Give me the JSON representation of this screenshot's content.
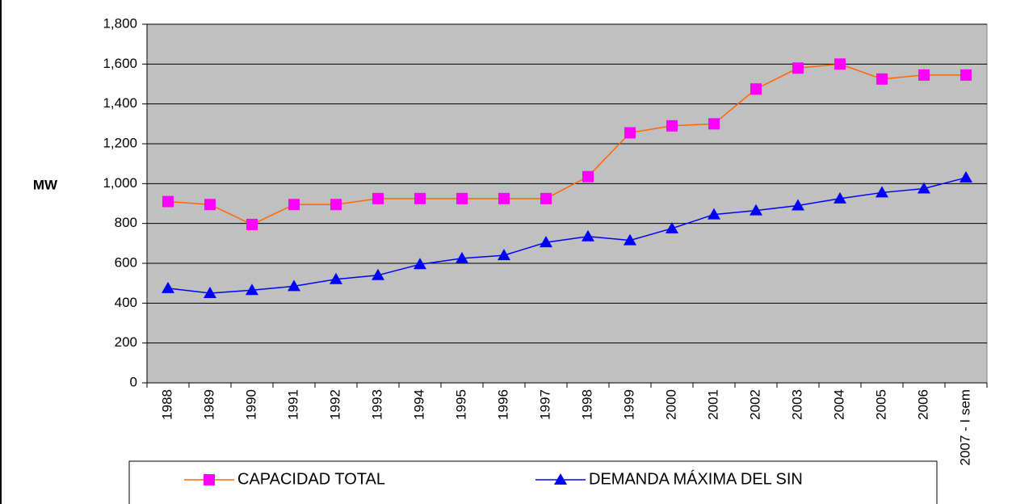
{
  "chart_data": {
    "type": "line",
    "y_label": "MW",
    "categories": [
      "1988",
      "1989",
      "1990",
      "1991",
      "1992",
      "1993",
      "1994",
      "1995",
      "1996",
      "1997",
      "1998",
      "1999",
      "2000",
      "2001",
      "2002",
      "2003",
      "2004",
      "2005",
      "2006",
      "2007 - I sem"
    ],
    "series": [
      {
        "name": "CAPACIDAD TOTAL",
        "color": "#ff6600",
        "marker_color": "#ff00ff",
        "marker": "square",
        "values": [
          910,
          895,
          795,
          895,
          895,
          925,
          925,
          925,
          925,
          925,
          1035,
          1255,
          1290,
          1300,
          1475,
          1580,
          1600,
          1525,
          1545,
          1545
        ]
      },
      {
        "name": "DEMANDA MÁXIMA DEL SIN",
        "color": "#0000ff",
        "marker_color": "#0000ff",
        "marker": "triangle",
        "values": [
          475,
          450,
          465,
          485,
          520,
          540,
          595,
          625,
          640,
          705,
          735,
          715,
          775,
          845,
          865,
          890,
          925,
          955,
          975,
          1030
        ]
      }
    ],
    "ylim": [
      0,
      1800
    ],
    "yticks": [
      0,
      200,
      400,
      600,
      800,
      {
        "value": 1000,
        "label": "1,000"
      },
      {
        "value": 1200,
        "label": "1,200"
      },
      {
        "value": 1400,
        "label": "1,400"
      },
      {
        "value": 1600,
        "label": "1,600"
      },
      {
        "value": 1800,
        "label": "1,800"
      }
    ],
    "grid": true,
    "plot_background": "#c0c0c0",
    "legend": "bottom"
  }
}
